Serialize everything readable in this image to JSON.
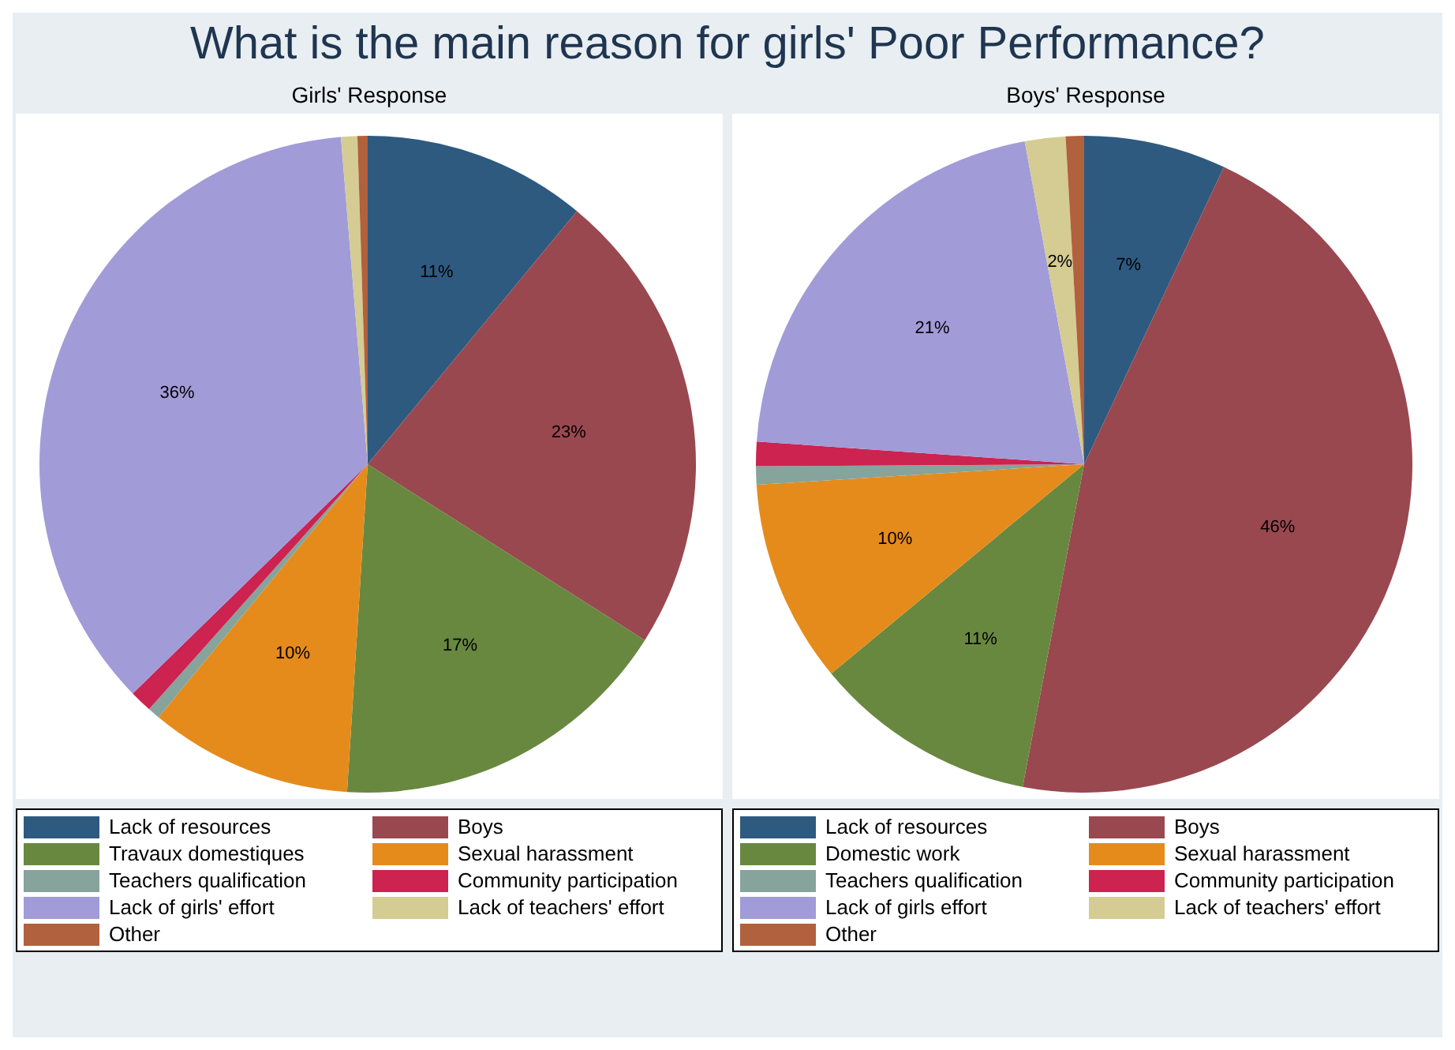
{
  "chart_data": [
    {
      "type": "pie",
      "title": "What is the main reason for girls' Poor Performance?",
      "subtitle": "Girls' Response",
      "categories": [
        "Lack of resources",
        "Boys",
        "Travaux domestiques",
        "Sexual harassment",
        "Teachers qualification",
        "Community participation",
        "Lack of girls' effort",
        "Lack of teachers' effort",
        "Other"
      ],
      "values": [
        11,
        23,
        17,
        10,
        0.6,
        1.1,
        36,
        0.8,
        0.5
      ],
      "value_labels": [
        "11%",
        "23%",
        "17%",
        "10%",
        null,
        null,
        "36%",
        null,
        null
      ],
      "colors": [
        "#2e5a80",
        "#9a4850",
        "#68883f",
        "#e58b1c",
        "#86a39c",
        "#cc2350",
        "#a19bd8",
        "#d5cc93",
        "#b1613d"
      ],
      "legend": "bottom"
    },
    {
      "type": "pie",
      "subtitle": "Boys' Response",
      "categories": [
        "Lack of resources",
        "Boys",
        "Domestic work",
        "Sexual harassment",
        "Teachers qualification",
        "Community participation",
        "Lack of girls effort",
        "Lack of teachers' effort",
        "Other"
      ],
      "values": [
        7,
        46,
        11,
        10,
        0.9,
        1.2,
        21,
        2,
        0.9
      ],
      "value_labels": [
        "7%",
        "46%",
        "11%",
        "10%",
        null,
        null,
        "21%",
        "2%",
        null
      ],
      "colors": [
        "#2e5a80",
        "#9a4850",
        "#68883f",
        "#e58b1c",
        "#86a39c",
        "#cc2350",
        "#a19bd8",
        "#d5cc93",
        "#b1613d"
      ],
      "legend": "bottom"
    }
  ]
}
